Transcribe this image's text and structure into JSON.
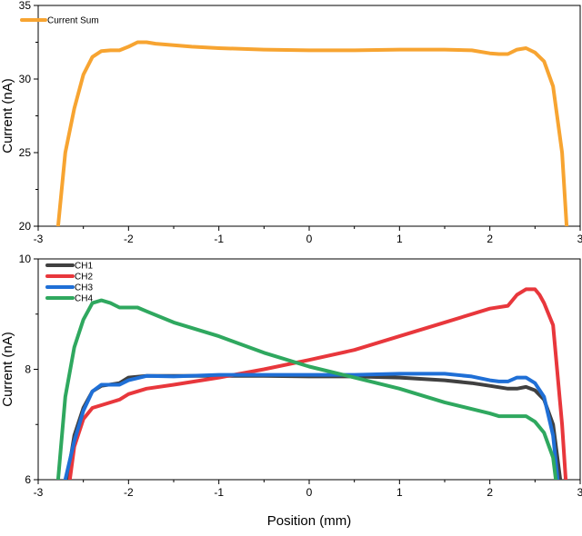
{
  "chart_data": [
    {
      "type": "line",
      "title": "",
      "xlabel": "",
      "ylabel": "Current (nA)",
      "xlim": [
        -3,
        3
      ],
      "ylim": [
        20,
        35
      ],
      "x_ticks": [
        -3,
        -2,
        -1,
        0,
        1,
        2,
        3
      ],
      "y_ticks": [
        20,
        25,
        30,
        35
      ],
      "grid": false,
      "legend_position": "top-left",
      "series": [
        {
          "name": "Current Sum",
          "color": "#F7A431",
          "x": [
            -2.78,
            -2.7,
            -2.6,
            -2.5,
            -2.4,
            -2.3,
            -2.2,
            -2.1,
            -2.0,
            -1.9,
            -1.8,
            -1.7,
            -1.5,
            -1.3,
            -1.0,
            -0.5,
            0.0,
            0.5,
            1.0,
            1.5,
            1.8,
            2.0,
            2.1,
            2.2,
            2.3,
            2.4,
            2.5,
            2.6,
            2.7,
            2.8,
            2.85
          ],
          "y": [
            20.0,
            25.0,
            28.0,
            30.3,
            31.5,
            31.9,
            31.95,
            31.95,
            32.2,
            32.5,
            32.5,
            32.4,
            32.3,
            32.2,
            32.1,
            32.0,
            31.95,
            31.95,
            32.0,
            32.0,
            31.95,
            31.75,
            31.7,
            31.7,
            32.0,
            32.1,
            31.8,
            31.2,
            29.5,
            25.0,
            20.0
          ]
        }
      ]
    },
    {
      "type": "line",
      "title": "",
      "xlabel": "Position (mm)",
      "ylabel": "Current (nA)",
      "xlim": [
        -3,
        3
      ],
      "ylim": [
        6,
        10
      ],
      "x_ticks": [
        -3,
        -2,
        -1,
        0,
        1,
        2,
        3
      ],
      "y_ticks": [
        6,
        8,
        10
      ],
      "grid": false,
      "legend_position": "top-left",
      "series": [
        {
          "name": "CH1",
          "color": "#404040",
          "x": [
            -2.68,
            -2.6,
            -2.5,
            -2.4,
            -2.3,
            -2.1,
            -2.0,
            -1.8,
            -1.5,
            -1.0,
            -0.5,
            0.0,
            0.5,
            1.0,
            1.5,
            1.8,
            2.0,
            2.2,
            2.3,
            2.4,
            2.5,
            2.6,
            2.7,
            2.78
          ],
          "y": [
            6.0,
            6.8,
            7.3,
            7.6,
            7.7,
            7.75,
            7.85,
            7.88,
            7.88,
            7.88,
            7.88,
            7.87,
            7.87,
            7.85,
            7.8,
            7.75,
            7.7,
            7.65,
            7.65,
            7.68,
            7.62,
            7.45,
            7.0,
            6.0
          ]
        },
        {
          "name": "CH2",
          "color": "#E8373C",
          "x": [
            -2.65,
            -2.6,
            -2.5,
            -2.4,
            -2.3,
            -2.1,
            -2.0,
            -1.8,
            -1.5,
            -1.0,
            -0.5,
            0.0,
            0.5,
            1.0,
            1.5,
            2.0,
            2.2,
            2.3,
            2.4,
            2.5,
            2.55,
            2.6,
            2.7,
            2.8,
            2.84
          ],
          "y": [
            6.0,
            6.6,
            7.1,
            7.3,
            7.35,
            7.45,
            7.55,
            7.65,
            7.72,
            7.85,
            8.0,
            8.17,
            8.35,
            8.6,
            8.85,
            9.1,
            9.15,
            9.35,
            9.45,
            9.45,
            9.35,
            9.2,
            8.8,
            7.0,
            6.0
          ]
        },
        {
          "name": "CH3",
          "color": "#1F6FD6",
          "x": [
            -2.7,
            -2.6,
            -2.5,
            -2.4,
            -2.3,
            -2.1,
            -2.0,
            -1.8,
            -1.5,
            -1.0,
            -0.5,
            0.0,
            0.5,
            1.0,
            1.5,
            1.8,
            2.0,
            2.1,
            2.2,
            2.3,
            2.4,
            2.5,
            2.6,
            2.7,
            2.75
          ],
          "y": [
            6.0,
            6.7,
            7.25,
            7.6,
            7.72,
            7.72,
            7.8,
            7.88,
            7.87,
            7.9,
            7.9,
            7.9,
            7.9,
            7.92,
            7.92,
            7.87,
            7.8,
            7.78,
            7.78,
            7.85,
            7.85,
            7.75,
            7.5,
            6.8,
            6.0
          ]
        },
        {
          "name": "CH4",
          "color": "#2FA85F",
          "x": [
            -2.78,
            -2.7,
            -2.6,
            -2.5,
            -2.4,
            -2.3,
            -2.2,
            -2.1,
            -2.0,
            -1.9,
            -1.8,
            -1.5,
            -1.0,
            -0.5,
            0.0,
            0.5,
            1.0,
            1.5,
            2.0,
            2.1,
            2.2,
            2.3,
            2.4,
            2.5,
            2.6,
            2.7,
            2.73
          ],
          "y": [
            6.0,
            7.5,
            8.4,
            8.9,
            9.2,
            9.25,
            9.2,
            9.12,
            9.12,
            9.12,
            9.05,
            8.85,
            8.6,
            8.3,
            8.05,
            7.85,
            7.65,
            7.4,
            7.2,
            7.15,
            7.15,
            7.15,
            7.15,
            7.05,
            6.85,
            6.4,
            6.0
          ]
        }
      ]
    }
  ]
}
